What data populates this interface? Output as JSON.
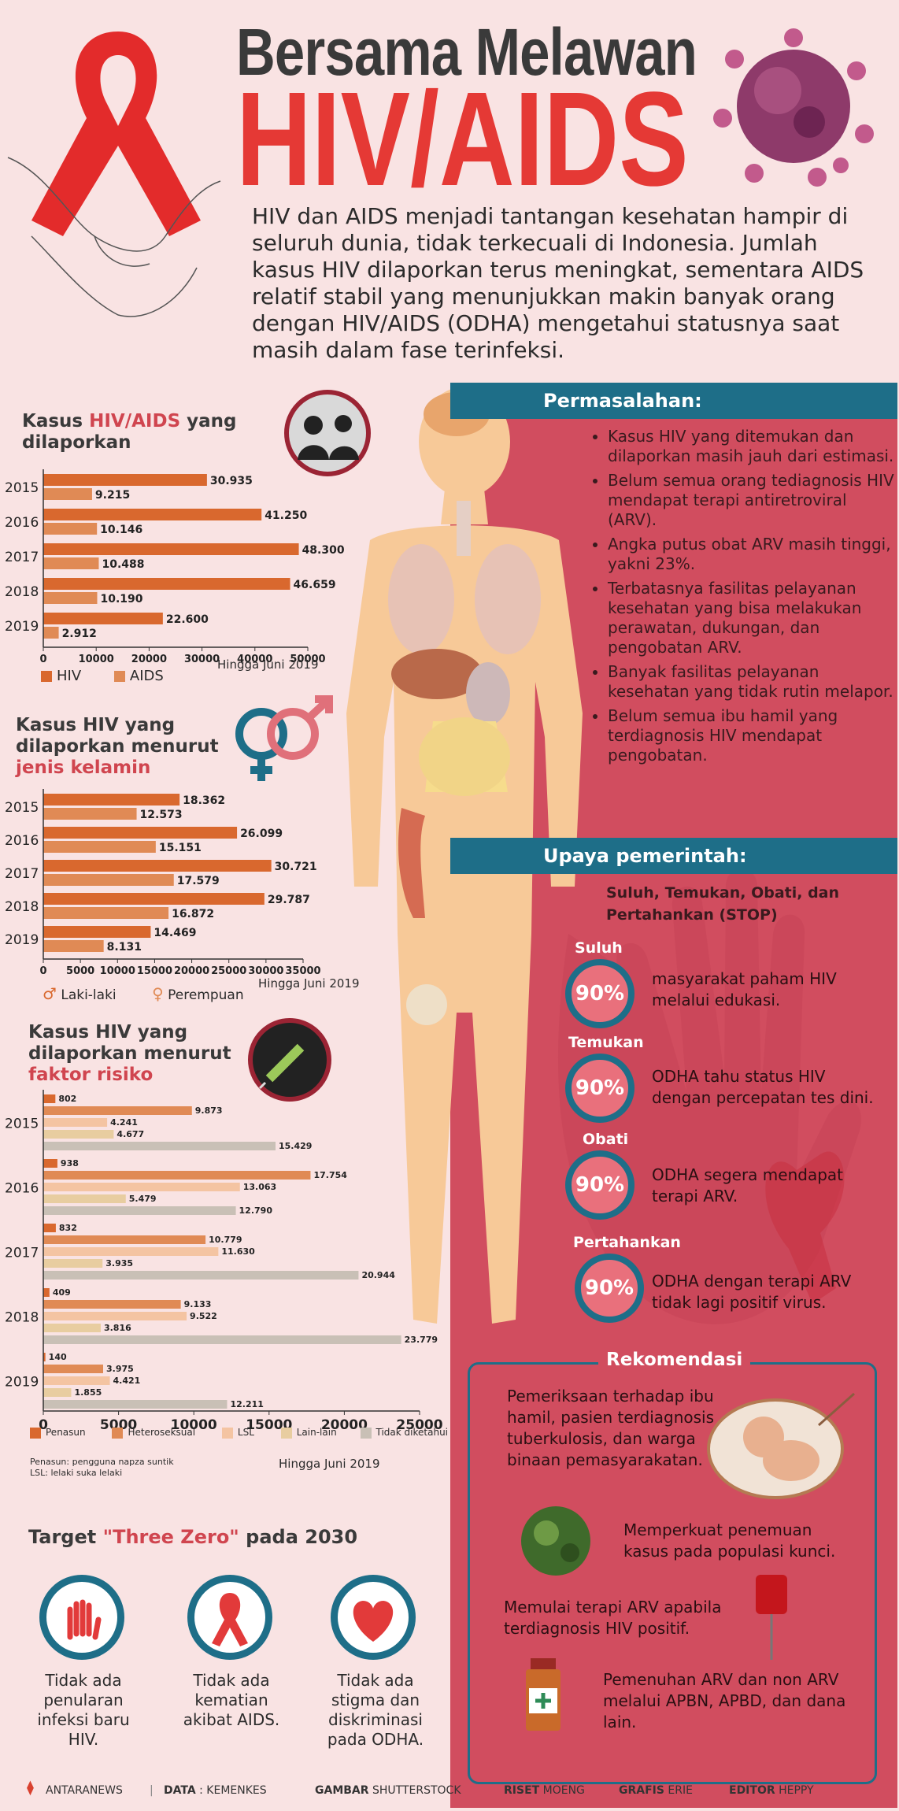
{
  "header": {
    "title_line1": "Bersama Melawan",
    "title_line2": "HIV/AIDS",
    "intro": "HIV dan AIDS menjadi tantangan kesehatan hampir di seluruh dunia, tidak terkecuali di Indonesia. Jumlah kasus HIV dilaporkan terus meningkat, sementara AIDS relatif stabil yang menunjukkan makin banyak orang dengan HIV/AIDS (ODHA) mengetahui statusnya saat masih dalam fase terinfeksi."
  },
  "colors": {
    "accent_red": "#e53935",
    "panel_pink": "#d14d5f",
    "band_blue": "#1e6e88",
    "bg": "#f9e3e3",
    "hiv_orange": "#d9682e",
    "aids_orange": "#e08a55"
  },
  "chart1": {
    "title_pre": "Kasus ",
    "title_red": "HIV/AIDS",
    "title_post": " yang",
    "title_line2": "dilaporkan",
    "note": "Hingga Juni 2019",
    "legend": [
      "HIV",
      "AIDS"
    ]
  },
  "chart2": {
    "title_line1": "Kasus HIV yang",
    "title_line2": "dilaporkan menurut",
    "title_red": "jenis kelamin",
    "note": "Hingga Juni 2019",
    "legend": [
      "Laki-laki",
      "Perempuan"
    ]
  },
  "chart3": {
    "title_line1": "Kasus HIV yang",
    "title_line2": "dilaporkan menurut",
    "title_red": "faktor risiko",
    "note": "Hingga Juni 2019",
    "legend": [
      "Penasun",
      "Heteroseksual",
      "LSL",
      "Lain-lain",
      "Tidak diketahui"
    ],
    "footnote1": "Penasun:  pengguna napza suntik",
    "footnote2": "LSL: lelaki suka lelaki"
  },
  "chart_data": [
    {
      "type": "bar",
      "orientation": "horizontal",
      "title": "Kasus HIV/AIDS yang dilaporkan",
      "categories": [
        "2015",
        "2016",
        "2017",
        "2018",
        "2019"
      ],
      "series": [
        {
          "name": "HIV",
          "values": [
            30935,
            41250,
            48300,
            46659,
            22600
          ],
          "labels": [
            "30.935",
            "41.250",
            "48.300",
            "46.659",
            "22.600"
          ]
        },
        {
          "name": "AIDS",
          "values": [
            9215,
            10146,
            10488,
            10190,
            2912
          ],
          "labels": [
            "9.215",
            "10.146",
            "10.488",
            "10.190",
            "2.912"
          ]
        }
      ],
      "xlim": [
        0,
        50000
      ],
      "ticks": [
        "0",
        "10000",
        "20000",
        "30000",
        "40000",
        "50000"
      ]
    },
    {
      "type": "bar",
      "orientation": "horizontal",
      "title": "Kasus HIV yang dilaporkan menurut jenis kelamin",
      "categories": [
        "2015",
        "2016",
        "2017",
        "2018",
        "2019"
      ],
      "series": [
        {
          "name": "Laki-laki",
          "values": [
            18362,
            26099,
            30721,
            29787,
            14469
          ],
          "labels": [
            "18.362",
            "26.099",
            "30.721",
            "29.787",
            "14.469"
          ]
        },
        {
          "name": "Perempuan",
          "values": [
            12573,
            15151,
            17579,
            16872,
            8131
          ],
          "labels": [
            "12.573",
            "15.151",
            "17.579",
            "16.872",
            "8.131"
          ]
        }
      ],
      "xlim": [
        0,
        35000
      ],
      "ticks": [
        "0",
        "5000",
        "10000",
        "15000",
        "20000",
        "25000",
        "30000",
        "35000"
      ]
    },
    {
      "type": "bar",
      "orientation": "horizontal",
      "title": "Kasus HIV yang dilaporkan menurut faktor risiko",
      "categories": [
        "2015",
        "2016",
        "2017",
        "2018",
        "2019"
      ],
      "series": [
        {
          "name": "Penasun",
          "values": [
            802,
            938,
            832,
            409,
            140
          ],
          "labels": [
            "802",
            "938",
            "832",
            "409",
            "140"
          ]
        },
        {
          "name": "Heteroseksual",
          "values": [
            9873,
            17754,
            10779,
            9133,
            3975
          ],
          "labels": [
            "9.873",
            "17.754",
            "10.779",
            "9.133",
            "3.975"
          ]
        },
        {
          "name": "LSL",
          "values": [
            4241,
            13063,
            11630,
            9522,
            4421
          ],
          "labels": [
            "4.241",
            "13.063",
            "11.630",
            "9.522",
            "4.421"
          ]
        },
        {
          "name": "Lain-lain",
          "values": [
            4677,
            5479,
            3935,
            3816,
            1855
          ],
          "labels": [
            "4.677",
            "5.479",
            "3.935",
            "3.816",
            "1.855"
          ]
        },
        {
          "name": "Tidak diketahui",
          "values": [
            15429,
            12790,
            20944,
            23779,
            12211
          ],
          "labels": [
            "15.429",
            "12.790",
            "20.944",
            "23.779",
            "12.211"
          ]
        }
      ],
      "xlim": [
        0,
        25000
      ],
      "ticks": [
        "0",
        "5000",
        "10000",
        "15000",
        "20000",
        "25000"
      ]
    }
  ],
  "permasalahan": {
    "heading": "Permasalahan:",
    "items": [
      "Kasus HIV yang ditemukan dan dilaporkan masih jauh dari estimasi.",
      "Belum semua orang tediagnosis HIV mendapat terapi antiretroviral (ARV).",
      "Angka putus obat ARV masih tinggi, yakni 23%.",
      "Terbatasnya fasilitas pelayanan kesehatan yang bisa melakukan perawatan, dukungan, dan pengobatan ARV.",
      "Banyak fasilitas pelayanan kesehatan yang tidak rutin melapor.",
      "Belum semua ibu hamil yang terdiagnosis HIV mendapat pengobatan."
    ]
  },
  "upaya": {
    "heading": "Upaya pemerintah:",
    "subtitle_line1": "Suluh, Temukan, Obati, dan",
    "subtitle_line2": "Pertahankan (STOP)",
    "items": [
      {
        "label": "Suluh",
        "percent": "90%",
        "text": "masyarakat paham HIV melalui edukasi."
      },
      {
        "label": "Temukan",
        "percent": "90%",
        "text": "ODHA tahu status HIV dengan percepatan tes dini."
      },
      {
        "label": "Obati",
        "percent": "90%",
        "text": "ODHA segera mendapat terapi ARV."
      },
      {
        "label": "Pertahankan",
        "percent": "90%",
        "text": "ODHA dengan terapi ARV tidak lagi positif virus."
      }
    ]
  },
  "rekomendasi": {
    "heading": "Rekomendasi",
    "items": [
      "Pemeriksaan terhadap ibu hamil, pasien terdiagnosis tuberkulosis, dan warga binaan pemasyarakatan.",
      "Memperkuat penemuan kasus pada populasi kunci.",
      "Memulai terapi ARV apabila terdiagnosis HIV positif.",
      "Pemenuhan ARV dan non ARV melalui APBN, APBD, dan dana lain."
    ]
  },
  "three_zero": {
    "title_pre": "Target ",
    "title_red": "\"Three Zero\"",
    "title_post": " pada 2030",
    "items": [
      "Tidak ada penularan infeksi baru HIV.",
      "Tidak ada kematian akibat AIDS.",
      "Tidak ada stigma dan diskriminasi pada ODHA."
    ]
  },
  "footer": {
    "brand": "ANTARANEWS",
    "data_label": "DATA",
    "data_value": " : KEMENKES",
    "gambar_label": "GAMBAR",
    "gambar_value": " SHUTTERSTOCK",
    "riset_label": "RISET",
    "riset_value": " MOENG",
    "grafis_label": "GRAFIS",
    "grafis_value": " ERIE",
    "editor_label": "EDITOR",
    "editor_value": " HEPPY"
  }
}
